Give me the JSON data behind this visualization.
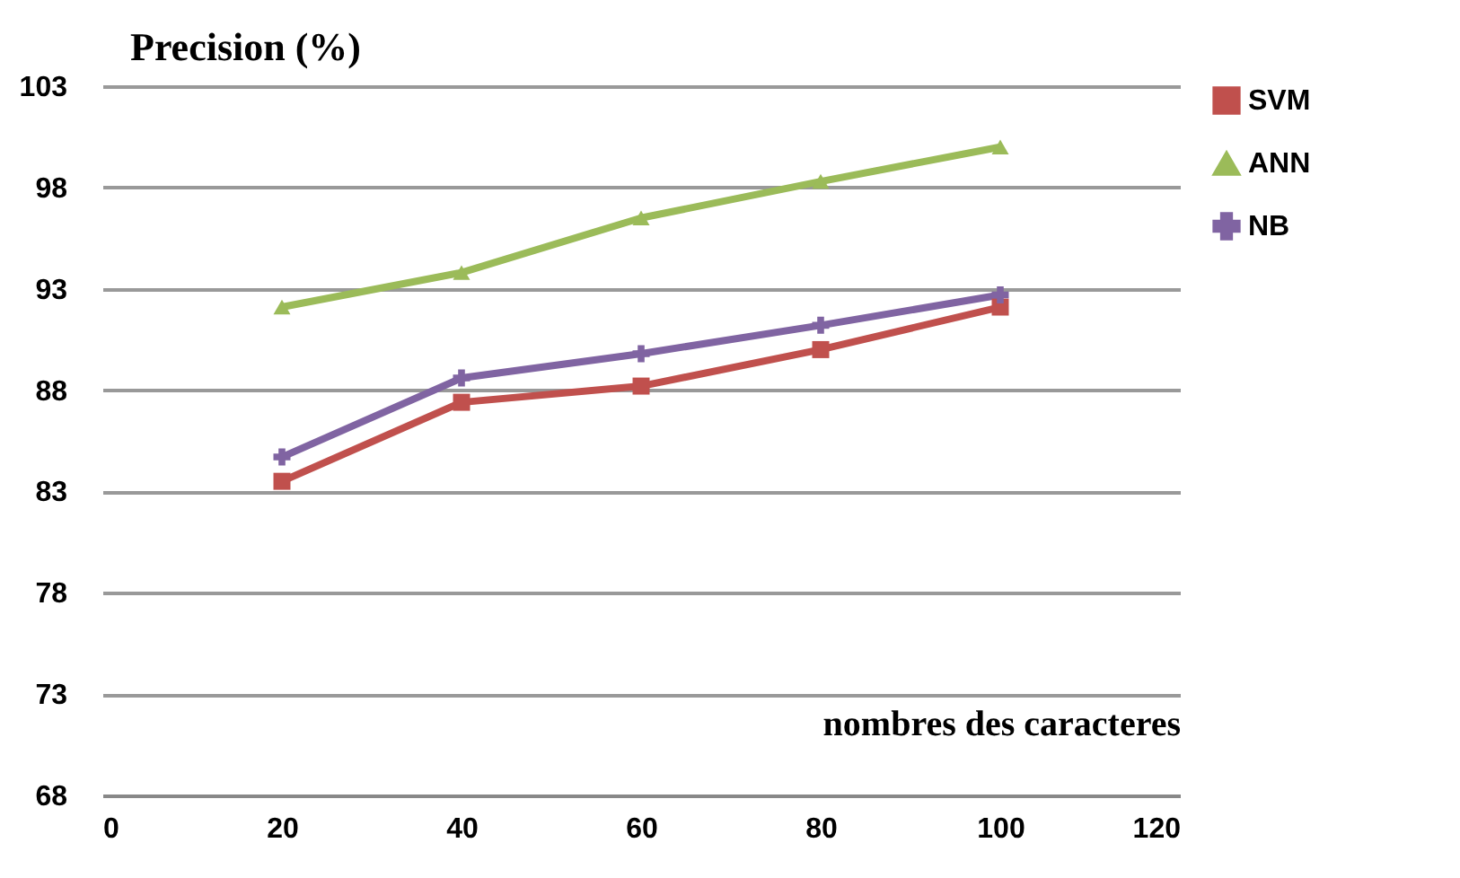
{
  "chart_data": {
    "type": "line",
    "xlabel": "nombres des caracteres",
    "ylabel": "Precision (%)",
    "x": [
      20,
      40,
      60,
      80,
      100
    ],
    "series": [
      {
        "name": "SVM",
        "color": "#c0504d",
        "marker": "square",
        "values": [
          83.5,
          87.4,
          88.2,
          90.0,
          92.1
        ]
      },
      {
        "name": "ANN",
        "color": "#9bbb59",
        "marker": "triangle",
        "values": [
          92.1,
          93.8,
          96.5,
          98.3,
          100.0
        ]
      },
      {
        "name": "NB",
        "color": "#8064a2",
        "marker": "cross",
        "values": [
          84.7,
          88.6,
          89.8,
          91.2,
          92.7
        ]
      }
    ],
    "xlim": [
      0,
      120
    ],
    "xticks": [
      0,
      20,
      40,
      60,
      80,
      100,
      120
    ],
    "ylim": [
      68,
      103
    ],
    "yticks": [
      68,
      73,
      78,
      83,
      88,
      93,
      98,
      103
    ],
    "grid": "y",
    "legend": "top right"
  }
}
